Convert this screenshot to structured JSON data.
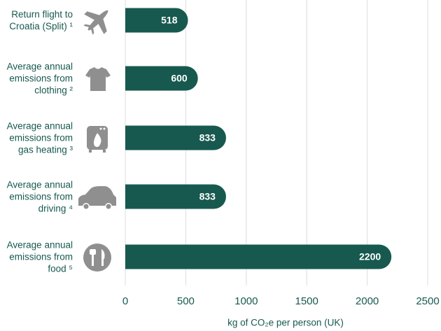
{
  "chart_data": {
    "type": "bar",
    "orientation": "horizontal",
    "categories": [
      "Return flight to Croatia (Split) ¹",
      "Average annual emissions from clothing ²",
      "Average annual emissions from gas heating ³",
      "Average annual emissions from driving ⁴",
      "Average annual emissions from food ⁵"
    ],
    "values": [
      518,
      600,
      833,
      833,
      2200
    ],
    "color": "#17594f",
    "x_label": "kg of CO₂e per person (UK)",
    "xlim": [
      0,
      2500
    ],
    "xticks": [
      0,
      500,
      1000,
      1500,
      2000,
      2500
    ],
    "grid": true
  }
}
